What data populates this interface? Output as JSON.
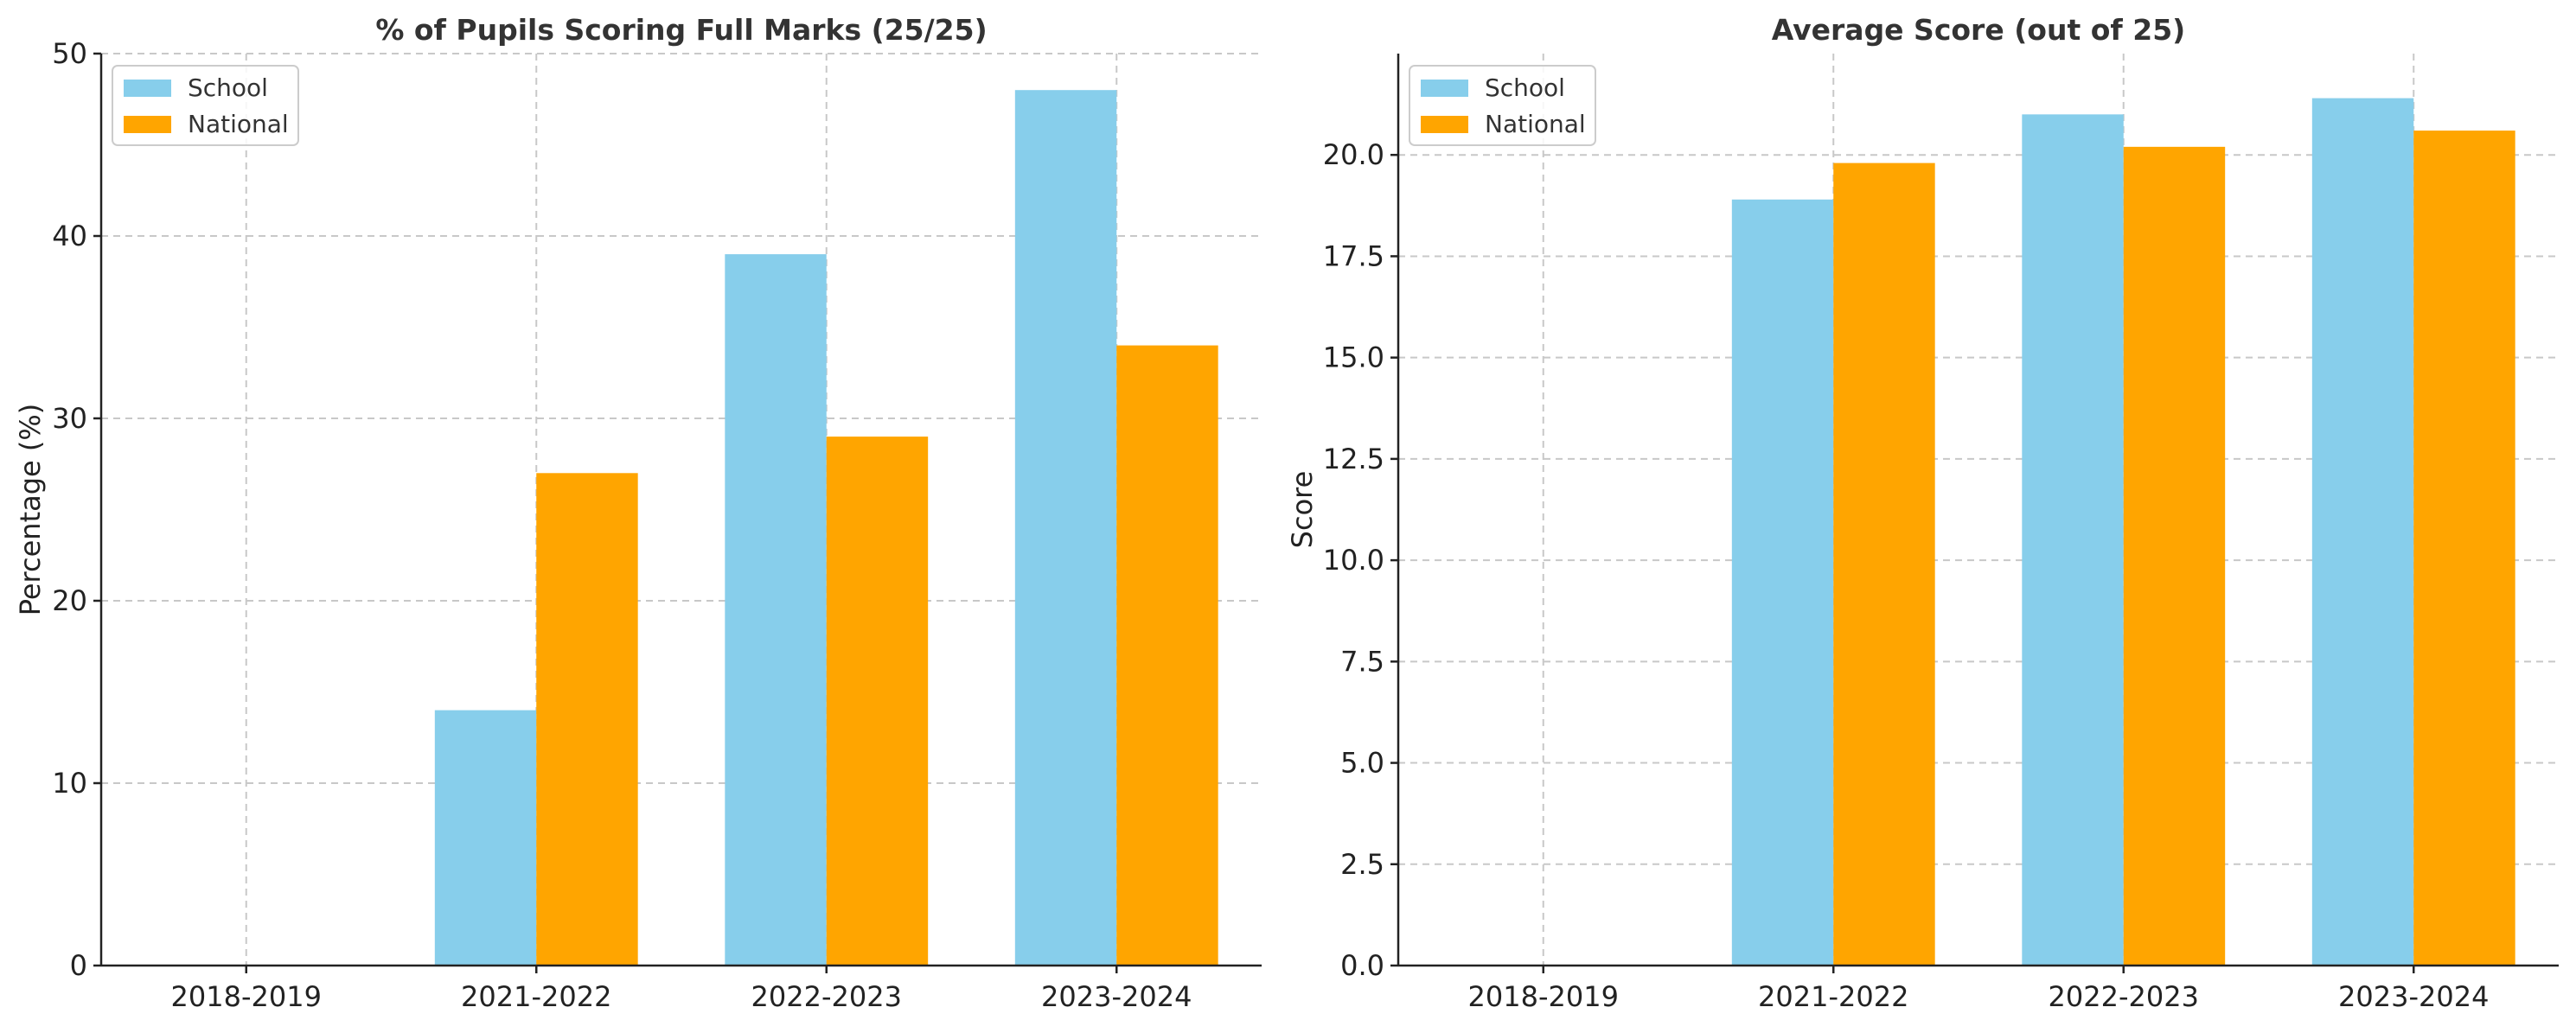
{
  "chart_data": [
    {
      "type": "bar",
      "title": "% of Pupils Scoring Full Marks (25/25)",
      "xlabel": "",
      "ylabel": "Percentage (%)",
      "categories": [
        "2018-2019",
        "2021-2022",
        "2022-2023",
        "2023-2024"
      ],
      "series": [
        {
          "name": "School",
          "color": "#87ceeb",
          "values": [
            null,
            14,
            39,
            48
          ]
        },
        {
          "name": "National",
          "color": "#ffa500",
          "values": [
            null,
            27,
            29,
            34
          ]
        }
      ],
      "ylim": [
        0,
        50
      ],
      "yticks": [
        0,
        10,
        20,
        30,
        40,
        50
      ],
      "ytick_labels": [
        "0",
        "10",
        "20",
        "30",
        "40",
        "50"
      ],
      "grid": true,
      "legend": "top-left"
    },
    {
      "type": "bar",
      "title": "Average Score (out of 25)",
      "xlabel": "",
      "ylabel": "Score",
      "categories": [
        "2018-2019",
        "2021-2022",
        "2022-2023",
        "2023-2024"
      ],
      "series": [
        {
          "name": "School",
          "color": "#87ceeb",
          "values": [
            null,
            18.9,
            21.0,
            21.4
          ]
        },
        {
          "name": "National",
          "color": "#ffa500",
          "values": [
            null,
            19.8,
            20.2,
            20.6
          ]
        }
      ],
      "ylim": [
        0,
        22.5
      ],
      "yticks": [
        0,
        2.5,
        5,
        7.5,
        10,
        12.5,
        15,
        17.5,
        20
      ],
      "ytick_labels": [
        "0.0",
        "2.5",
        "5.0",
        "7.5",
        "10.0",
        "12.5",
        "15.0",
        "17.5",
        "20.0"
      ],
      "grid": true,
      "legend": "top-left"
    }
  ]
}
